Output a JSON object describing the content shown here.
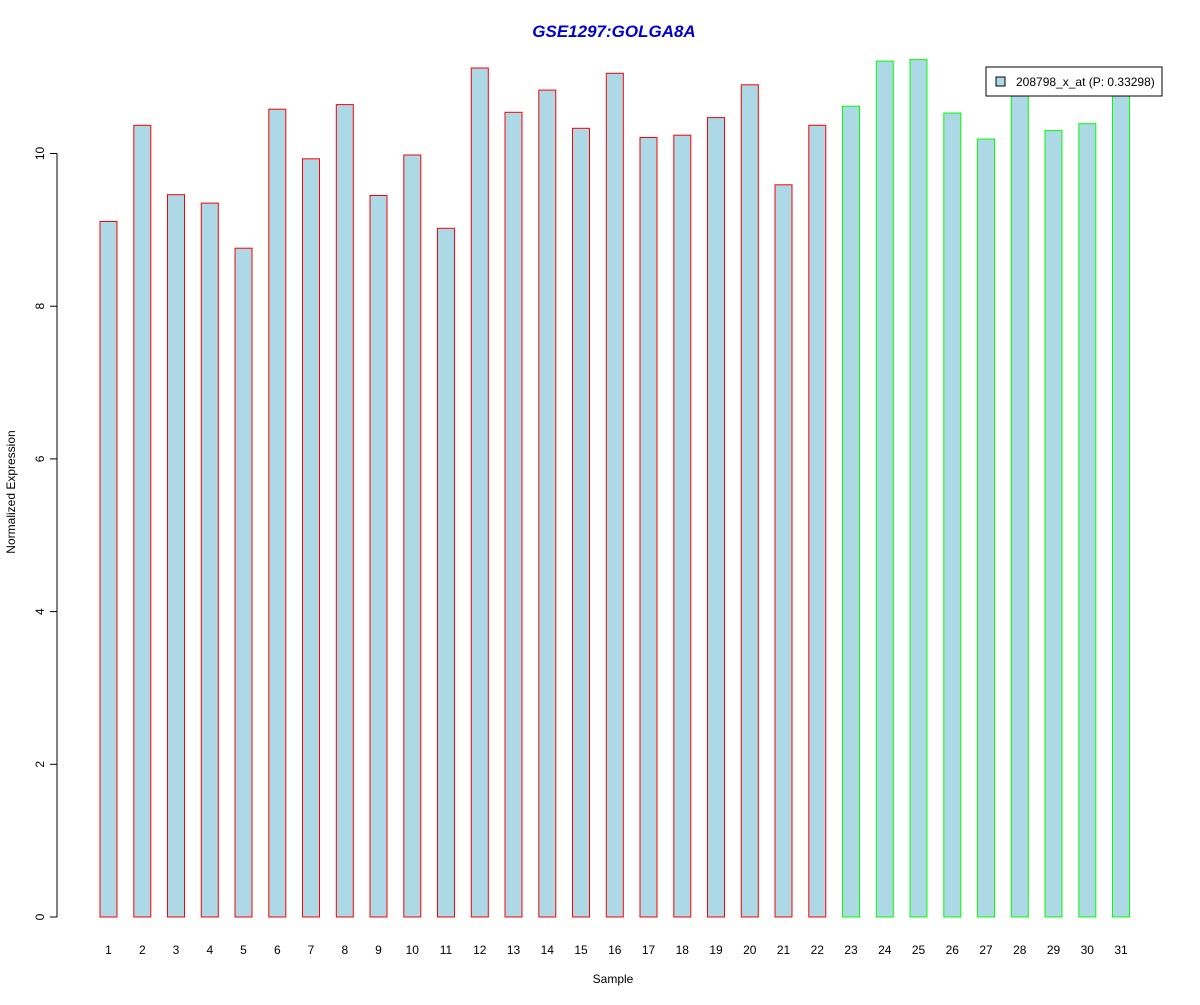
{
  "colors": {
    "bar_fill": "#add8e6",
    "group1_border": "#ff0000",
    "group2_border": "#00ff00",
    "title": "#0000cd",
    "axis": "#000000"
  },
  "chart_data": {
    "type": "bar",
    "title": "GSE1297:GOLGA8A",
    "xlabel": "Sample",
    "ylabel": "Normalized Expression",
    "ylim": [
      0,
      11.4
    ],
    "yticks": [
      "0",
      "2",
      "4",
      "6",
      "8",
      "10"
    ],
    "categories": [
      "1",
      "2",
      "3",
      "4",
      "5",
      "6",
      "7",
      "8",
      "9",
      "10",
      "11",
      "12",
      "13",
      "14",
      "15",
      "16",
      "17",
      "18",
      "19",
      "20",
      "21",
      "22",
      "23",
      "24",
      "25",
      "26",
      "27",
      "28",
      "29",
      "30",
      "31"
    ],
    "series": [
      {
        "name": "208798_x_at (P: 0.33298)",
        "values": [
          9.11,
          10.37,
          9.46,
          9.35,
          8.76,
          10.58,
          9.93,
          10.64,
          9.45,
          9.98,
          9.02,
          11.12,
          10.54,
          10.83,
          10.33,
          11.05,
          10.21,
          10.24,
          10.47,
          10.9,
          9.59,
          10.37,
          10.62,
          11.21,
          11.23,
          10.53,
          10.19,
          10.83,
          10.3,
          10.39,
          10.82
        ]
      }
    ],
    "groups": [
      1,
      1,
      1,
      1,
      1,
      1,
      1,
      1,
      1,
      1,
      1,
      1,
      1,
      1,
      1,
      1,
      1,
      1,
      1,
      1,
      1,
      1,
      2,
      2,
      2,
      2,
      2,
      2,
      2,
      2,
      2
    ],
    "legend": {
      "position": "top-right",
      "label": "208798_x_at (P: 0.33298)"
    },
    "grid": false
  }
}
